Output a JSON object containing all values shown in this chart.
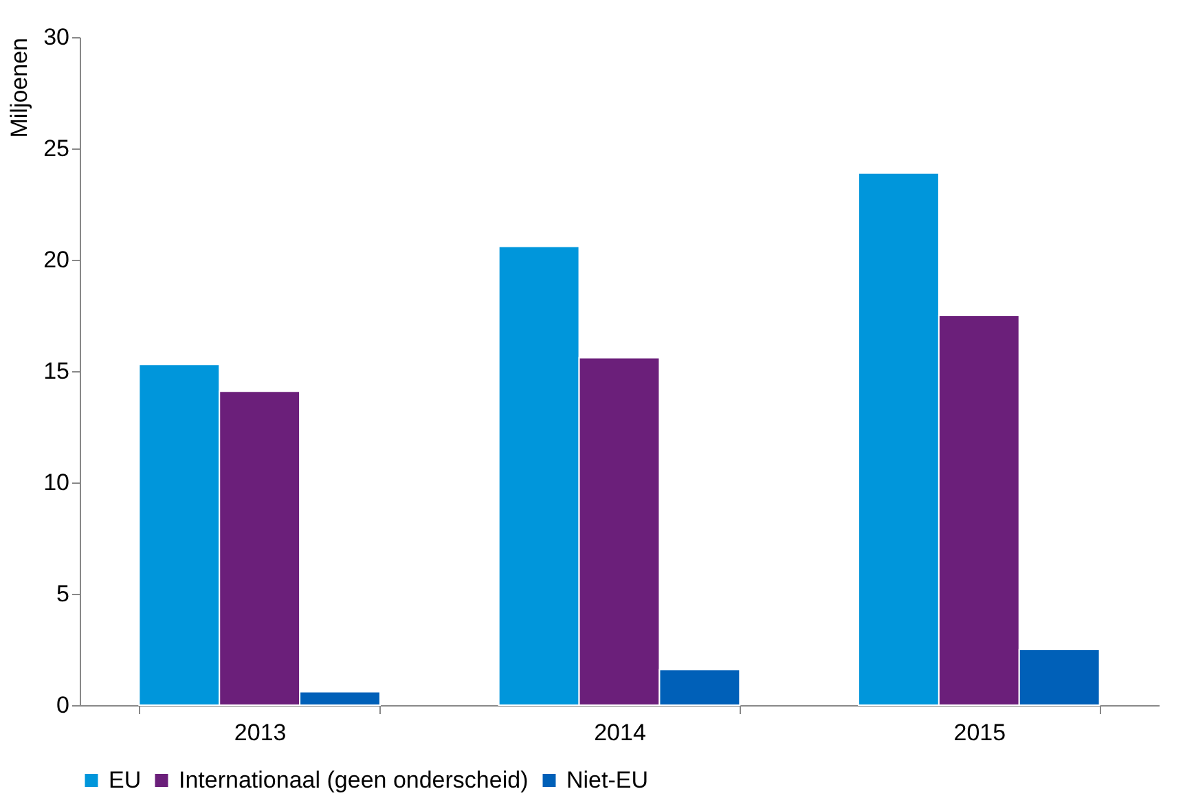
{
  "chart_data": {
    "type": "bar",
    "ylabel": "Miljoenen",
    "categories": [
      "2013",
      "2014",
      "2015"
    ],
    "series": [
      {
        "name": "EU",
        "color": "#0096db",
        "values": [
          15.3,
          20.6,
          23.9
        ]
      },
      {
        "name": "Internationaal (geen onderscheid)",
        "color": "#6b1f7a",
        "values": [
          14.1,
          15.6,
          17.5
        ]
      },
      {
        "name": "Niet-EU",
        "color": "#0060b8",
        "values": [
          0.6,
          1.6,
          2.5
        ]
      }
    ],
    "ylim": [
      0,
      30
    ],
    "yticks": [
      0,
      5,
      10,
      15,
      20,
      25,
      30
    ],
    "grid": false,
    "legend": "bottom"
  }
}
